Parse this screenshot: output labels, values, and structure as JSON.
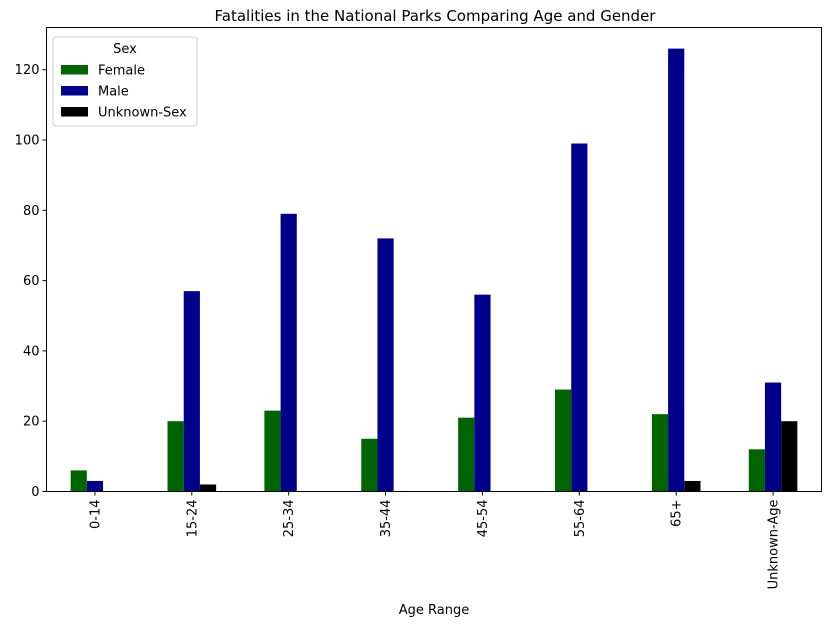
{
  "chart_data": {
    "type": "bar",
    "title": "Fatalities in the National Parks Comparing Age and Gender",
    "xlabel": "Age Range",
    "ylabel": "",
    "categories": [
      "0-14",
      "15-24",
      "25-34",
      "35-44",
      "45-54",
      "55-64",
      "65+",
      "Unknown-Age"
    ],
    "ylim": [
      0,
      132
    ],
    "yticks": [
      0,
      20,
      40,
      60,
      80,
      100,
      120
    ],
    "grid": false,
    "legend": {
      "title": "Sex",
      "placement": "top-left"
    },
    "series": [
      {
        "name": "Female",
        "color": "#006400",
        "values": [
          6,
          20,
          23,
          15,
          21,
          29,
          22,
          12
        ]
      },
      {
        "name": "Male",
        "color": "#00008b",
        "values": [
          3,
          57,
          79,
          72,
          56,
          99,
          126,
          31
        ]
      },
      {
        "name": "Unknown-Sex",
        "color": "#000000",
        "values": [
          0,
          2,
          0,
          0,
          0,
          0,
          3,
          20
        ]
      }
    ]
  }
}
